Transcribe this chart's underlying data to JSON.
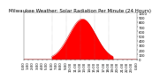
{
  "title": "Milwaukee Weather: Solar Radiation Per Minute (24 Hours)",
  "background_color": "#ffffff",
  "plot_bg_color": "#ffffff",
  "fill_color": "#ff0000",
  "line_color": "#cc0000",
  "grid_color": "#888888",
  "x_min": 0,
  "x_max": 1440,
  "y_min": 0,
  "y_max": 1000,
  "peak_minute": 750,
  "peak_value": 870,
  "rise_start": 360,
  "fall_end": 1140,
  "title_fontsize": 4.0,
  "tick_fontsize": 2.8,
  "x_ticks": [
    0,
    60,
    120,
    180,
    240,
    300,
    360,
    420,
    480,
    540,
    600,
    660,
    720,
    780,
    840,
    900,
    960,
    1020,
    1080,
    1140,
    1200,
    1260,
    1320,
    1380,
    1440
  ],
  "x_tick_labels": [
    "0:00",
    "1:00",
    "2:00",
    "3:00",
    "4:00",
    "5:00",
    "6:00",
    "7:00",
    "8:00",
    "9:00",
    "10:00",
    "11:00",
    "12:00",
    "13:00",
    "14:00",
    "15:00",
    "16:00",
    "17:00",
    "18:00",
    "19:00",
    "20:00",
    "21:00",
    "22:00",
    "23:00",
    "0:00"
  ],
  "y_ticks": [
    0,
    100,
    200,
    300,
    400,
    500,
    600,
    700,
    800,
    900,
    1000
  ],
  "vgrid_lines": [
    360,
    540,
    720,
    900,
    1080
  ]
}
